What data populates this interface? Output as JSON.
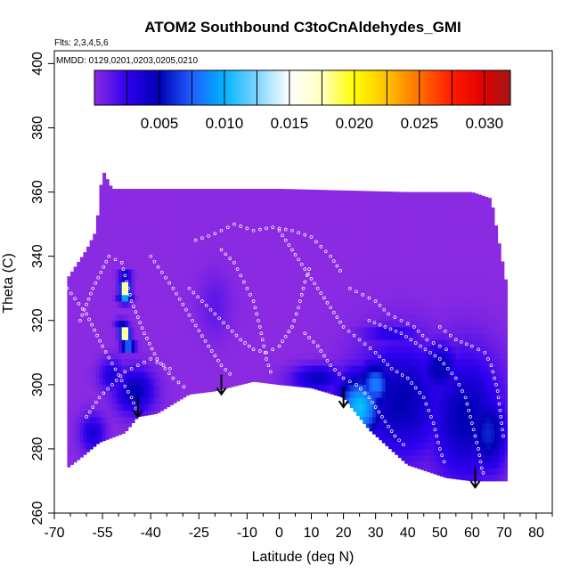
{
  "chart_data": {
    "type": "heatmap",
    "title": "ATOM2 Southbound C3toCnAldehydes_GMI",
    "flights_label": "Flts: 2,3,4,5,6",
    "dates_label": "MMDD: 0129,0201,0203,0205,0210",
    "xlabel": "Latitude (deg N)",
    "ylabel": "Theta (C)",
    "xlim": [
      -70,
      85
    ],
    "ylim": [
      260,
      404
    ],
    "x_ticks_major": [
      -70,
      -55,
      -40,
      -25,
      -10,
      0,
      10,
      20,
      30,
      40,
      50,
      60,
      70,
      80
    ],
    "x_ticks_minor": [
      -65,
      -60,
      -50,
      -45,
      -35,
      -30,
      -20,
      -15,
      -5,
      5,
      15,
      25,
      35,
      45,
      55,
      65,
      75,
      85
    ],
    "y_ticks": [
      260,
      280,
      300,
      320,
      340,
      360,
      380,
      400
    ],
    "colorbar": {
      "range": [
        0,
        0.032
      ],
      "ticks": [
        "0.005",
        "0.010",
        "0.015",
        "0.020",
        "0.025",
        "0.030"
      ],
      "tick_values": [
        0.005,
        0.01,
        0.015,
        0.02,
        0.025,
        0.03
      ],
      "stops": [
        {
          "v": 0.0,
          "color": "#8a2be2"
        },
        {
          "v": 0.0025,
          "color": "#2e00ee"
        },
        {
          "v": 0.005,
          "color": "#0000b4"
        },
        {
          "v": 0.0075,
          "color": "#1f5fff"
        },
        {
          "v": 0.01,
          "color": "#00b4ff"
        },
        {
          "v": 0.0125,
          "color": "#7fd4ff"
        },
        {
          "v": 0.015,
          "color": "#ffffff"
        },
        {
          "v": 0.0175,
          "color": "#ffffc0"
        },
        {
          "v": 0.02,
          "color": "#ffff00"
        },
        {
          "v": 0.0225,
          "color": "#ffc000"
        },
        {
          "v": 0.025,
          "color": "#ff7000"
        },
        {
          "v": 0.0275,
          "color": "#ff1a00"
        },
        {
          "v": 0.03,
          "color": "#e00000"
        },
        {
          "v": 0.032,
          "color": "#a01818"
        }
      ]
    },
    "background_value": 0.0,
    "envelope": {
      "top": [
        [
          -66,
          333
        ],
        [
          -60,
          342
        ],
        [
          -57,
          348
        ],
        [
          -55,
          367
        ],
        [
          -52,
          361
        ],
        [
          -30,
          361
        ],
        [
          0,
          361
        ],
        [
          40,
          360
        ],
        [
          60,
          360
        ],
        [
          66,
          358
        ],
        [
          71,
          330
        ]
      ],
      "bottom": [
        [
          71,
          270
        ],
        [
          60,
          270
        ],
        [
          52,
          271
        ],
        [
          40,
          275
        ],
        [
          28,
          286
        ],
        [
          20,
          296
        ],
        [
          10,
          299
        ],
        [
          0,
          300
        ],
        [
          -8,
          301
        ],
        [
          -20,
          298
        ],
        [
          -28,
          297
        ],
        [
          -38,
          291
        ],
        [
          -44,
          290
        ],
        [
          -48,
          285
        ],
        [
          -56,
          282
        ],
        [
          -62,
          277
        ],
        [
          -66,
          274
        ]
      ]
    },
    "hotspots": [
      {
        "lat": 25,
        "theta": 293,
        "rlat": 7,
        "rtheta": 10,
        "value": 0.0105
      },
      {
        "lat": 30,
        "theta": 300,
        "rlat": 5,
        "rtheta": 7,
        "value": 0.0085
      },
      {
        "lat": 38,
        "theta": 295,
        "rlat": 14,
        "rtheta": 18,
        "value": 0.005
      },
      {
        "lat": 58,
        "theta": 290,
        "rlat": 12,
        "rtheta": 20,
        "value": 0.005
      },
      {
        "lat": 50,
        "theta": 305,
        "rlat": 6,
        "rtheta": 8,
        "value": 0.0052
      },
      {
        "lat": 65,
        "theta": 285,
        "rlat": 6,
        "rtheta": 12,
        "value": 0.006
      },
      {
        "lat": 12,
        "theta": 302,
        "rlat": 8,
        "rtheta": 4,
        "value": 0.0045
      },
      {
        "lat": -45,
        "theta": 298,
        "rlat": 6,
        "rtheta": 7,
        "value": 0.005
      },
      {
        "lat": -52,
        "theta": 303,
        "rlat": 4,
        "rtheta": 5,
        "value": 0.0035
      },
      {
        "lat": -58,
        "theta": 285,
        "rlat": 4,
        "rtheta": 6,
        "value": 0.0035
      },
      {
        "lat": -48,
        "theta": 330,
        "rlat": 1.4,
        "rtheta": 2,
        "value": 0.026
      },
      {
        "lat": -48,
        "theta": 316,
        "rlat": 1.4,
        "rtheta": 2,
        "value": 0.026
      },
      {
        "lat": -47,
        "theta": 312,
        "rlat": 2,
        "rtheta": 1.5,
        "value": 0.012
      },
      {
        "lat": -48,
        "theta": 327,
        "rlat": 2,
        "rtheta": 1.5,
        "value": 0.01
      },
      {
        "lat": -48,
        "theta": 334,
        "rlat": 2,
        "rtheta": 1.5,
        "value": 0.006
      },
      {
        "lat": -49,
        "theta": 319,
        "rlat": 2,
        "rtheta": 1.5,
        "value": 0.005
      },
      {
        "lat": -20,
        "theta": 325,
        "rlat": 5,
        "rtheta": 10,
        "value": 0.0012
      },
      {
        "lat": 35,
        "theta": 316,
        "rlat": 10,
        "rtheta": 3,
        "value": 0.003
      }
    ],
    "arrows": [
      {
        "lat": -44,
        "theta_tip": 290
      },
      {
        "lat": -18,
        "theta_tip": 297
      },
      {
        "lat": 20,
        "theta_tip": 293
      },
      {
        "lat": 61,
        "theta_tip": 268
      }
    ],
    "flight_tracks": [
      [
        [
          -66,
          330
        ],
        [
          -60,
          322
        ],
        [
          -55,
          312
        ],
        [
          -50,
          303
        ],
        [
          -46,
          296
        ],
        [
          -44,
          291
        ]
      ],
      [
        [
          -62,
          320
        ],
        [
          -58,
          330
        ],
        [
          -53,
          340
        ],
        [
          -49,
          338
        ],
        [
          -46,
          326
        ],
        [
          -42,
          316
        ],
        [
          -38,
          308
        ],
        [
          -33,
          302
        ],
        [
          -28,
          298
        ]
      ],
      [
        [
          -40,
          340
        ],
        [
          -33,
          330
        ],
        [
          -27,
          320
        ],
        [
          -22,
          312
        ],
        [
          -18,
          306
        ],
        [
          -14,
          302
        ]
      ],
      [
        [
          -18,
          342
        ],
        [
          -14,
          338
        ],
        [
          -11,
          332
        ],
        [
          -8,
          326
        ],
        [
          -6,
          318
        ],
        [
          -4,
          308
        ],
        [
          -2,
          302
        ]
      ],
      [
        [
          -26,
          345
        ],
        [
          -20,
          347
        ],
        [
          -14,
          350
        ],
        [
          -8,
          348
        ],
        [
          -2,
          349
        ],
        [
          4,
          348
        ],
        [
          10,
          346
        ],
        [
          16,
          340
        ],
        [
          20,
          334
        ]
      ],
      [
        [
          0,
          348
        ],
        [
          4,
          342
        ],
        [
          8,
          336
        ],
        [
          12,
          330
        ],
        [
          16,
          324
        ],
        [
          20,
          318
        ],
        [
          25,
          314
        ],
        [
          30,
          310
        ],
        [
          35,
          305
        ],
        [
          40,
          302
        ],
        [
          45,
          296
        ],
        [
          48,
          288
        ],
        [
          50,
          280
        ],
        [
          52,
          274
        ]
      ],
      [
        [
          8,
          316
        ],
        [
          12,
          312
        ],
        [
          16,
          306
        ],
        [
          20,
          302
        ],
        [
          24,
          300
        ],
        [
          28,
          296
        ],
        [
          32,
          290
        ],
        [
          36,
          284
        ],
        [
          40,
          280
        ]
      ],
      [
        [
          28,
          320
        ],
        [
          33,
          318
        ],
        [
          38,
          316
        ],
        [
          44,
          312
        ],
        [
          50,
          308
        ],
        [
          55,
          302
        ],
        [
          58,
          296
        ],
        [
          60,
          288
        ],
        [
          62,
          280
        ],
        [
          63,
          274
        ],
        [
          64,
          271
        ]
      ],
      [
        [
          50,
          318
        ],
        [
          55,
          314
        ],
        [
          60,
          312
        ],
        [
          64,
          310
        ],
        [
          66,
          306
        ],
        [
          68,
          298
        ],
        [
          69,
          290
        ],
        [
          70,
          282
        ]
      ],
      [
        [
          -60,
          290
        ],
        [
          -56,
          296
        ],
        [
          -52,
          300
        ],
        [
          -48,
          304
        ],
        [
          -44,
          306
        ],
        [
          -40,
          308
        ],
        [
          -36,
          306
        ],
        [
          -32,
          304
        ]
      ],
      [
        [
          -28,
          330
        ],
        [
          -24,
          326
        ],
        [
          -20,
          322
        ],
        [
          -16,
          318
        ],
        [
          -12,
          314
        ],
        [
          -8,
          311
        ],
        [
          -4,
          310
        ],
        [
          0,
          312
        ],
        [
          4,
          318
        ],
        [
          6,
          324
        ],
        [
          8,
          332
        ],
        [
          10,
          338
        ]
      ],
      [
        [
          22,
          330
        ],
        [
          26,
          328
        ],
        [
          30,
          326
        ],
        [
          34,
          322
        ],
        [
          38,
          320
        ],
        [
          42,
          318
        ],
        [
          46,
          314
        ],
        [
          50,
          312
        ],
        [
          54,
          310
        ]
      ]
    ]
  }
}
